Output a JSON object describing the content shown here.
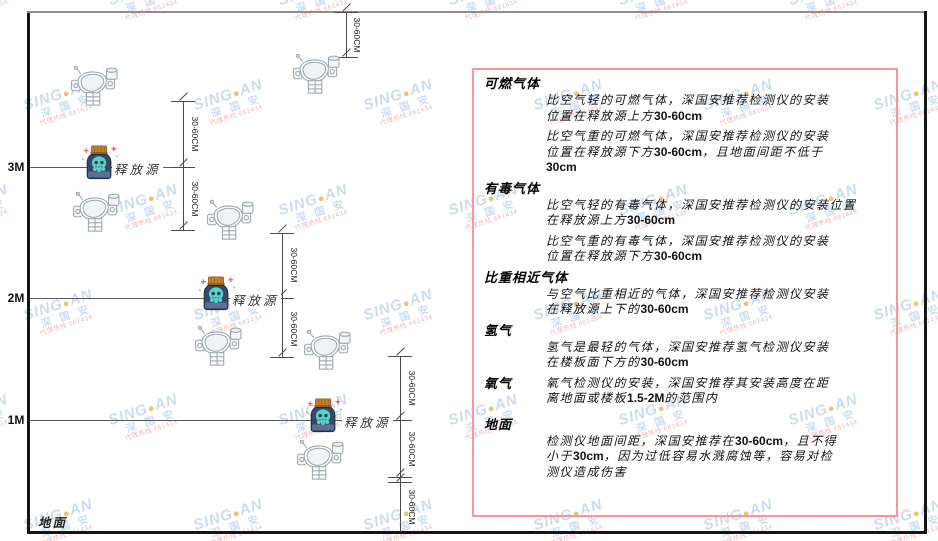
{
  "watermark": {
    "brand_left": "SING",
    "dot": "●",
    "brand_right": "AN",
    "cn": "深 国 安",
    "sub": "代理热线:661434"
  },
  "axis": {
    "levels": [
      {
        "label": "3M"
      },
      {
        "label": "2M"
      },
      {
        "label": "1M"
      }
    ],
    "ground_label": "地面"
  },
  "diagram": {
    "source_label": "释放源",
    "dim_label": "30-60CM"
  },
  "panel": {
    "sections": [
      {
        "title": "可燃气体",
        "inline": false,
        "paragraphs": [
          [
            "比空气轻的可燃气体，深国安推荐检测仪的安装",
            "位置在释放源上方30-60cm"
          ],
          [
            "比空气重的可燃气体，深国安推荐检测仪的安装",
            "位置在释放源下方30-60cm，且地面间距不低于",
            "30cm"
          ]
        ]
      },
      {
        "title": "有毒气体",
        "inline": false,
        "paragraphs": [
          [
            "比空气轻的有毒气体，深国安推荐检测仪的安装位置",
            "在释放源上方30-60cm"
          ],
          [
            "比空气重的有毒气体，深国安推荐检测仪的安装",
            "位置在释放源下方30-60cm"
          ]
        ]
      },
      {
        "title": "比重相近气体",
        "inline": false,
        "paragraphs": [
          [
            "与空气比重相近的气体，深国安推荐检测仪安装",
            "在释放源上下的30-60cm"
          ]
        ]
      },
      {
        "title": "氢气",
        "inline": false,
        "paragraphs": [
          [
            "氢气是最轻的气体，深国安推荐氢气检测仪安装",
            "在楼板面下方的30-60cm"
          ]
        ]
      },
      {
        "title": "氧气",
        "inline": true,
        "paragraphs": [
          [
            "氧气检测仪的安装，深国安推荐其安装高度在距",
            "离地面或楼板1.5-2M的范围内"
          ]
        ]
      },
      {
        "title": "地面",
        "inline": false,
        "paragraphs": [
          [
            "检测仪地面间距，深国安推荐在30-60cm，且不得",
            "小于30cm，因为过低容易水溅腐蚀等，容易对检",
            "测仪造成伤害"
          ]
        ]
      }
    ]
  }
}
